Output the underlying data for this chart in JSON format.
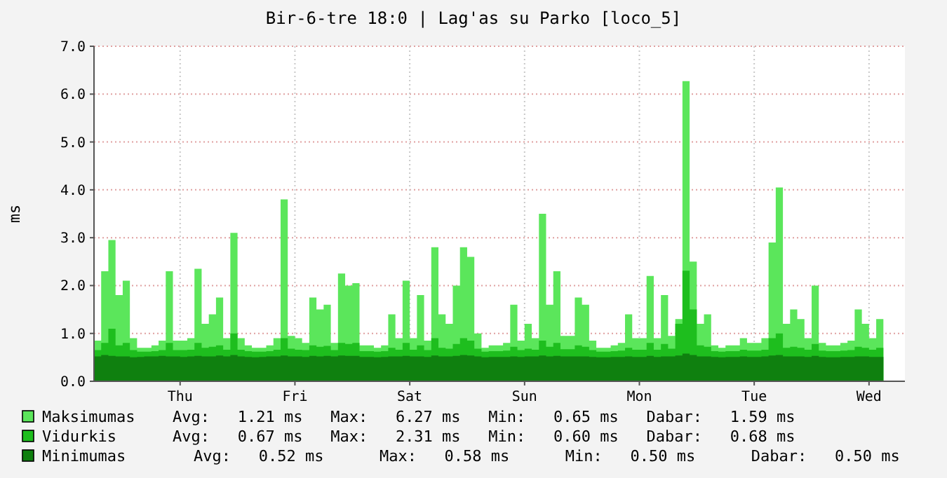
{
  "chart_data": {
    "type": "area",
    "title": "Bir-6-tre 18:0 | Lag'as su Parko [loco_5]",
    "ylabel": "ms",
    "categories": [
      null,
      null,
      null,
      null,
      null,
      null,
      null,
      null,
      null,
      null,
      null,
      null,
      "Thu",
      null,
      null,
      null,
      null,
      null,
      null,
      null,
      null,
      null,
      null,
      null,
      null,
      null,
      null,
      null,
      "Fri",
      null,
      null,
      null,
      null,
      null,
      null,
      null,
      null,
      null,
      null,
      null,
      null,
      null,
      null,
      null,
      "Sat",
      null,
      null,
      null,
      null,
      null,
      null,
      null,
      null,
      null,
      null,
      null,
      null,
      null,
      null,
      null,
      "Sun",
      null,
      null,
      null,
      null,
      null,
      null,
      null,
      null,
      null,
      null,
      null,
      null,
      null,
      null,
      null,
      "Mon",
      null,
      null,
      null,
      null,
      null,
      null,
      null,
      null,
      null,
      null,
      null,
      null,
      null,
      null,
      null,
      "Tue",
      null,
      null,
      null,
      null,
      null,
      null,
      null,
      null,
      null,
      null,
      null,
      null,
      null,
      null,
      null,
      "Wed",
      null,
      null
    ],
    "series": [
      {
        "name": "Maksimumas",
        "color": "#5be65b",
        "values": [
          0.85,
          2.3,
          2.95,
          1.8,
          2.1,
          0.9,
          0.7,
          0.7,
          0.75,
          0.85,
          2.3,
          0.85,
          0.85,
          0.9,
          2.35,
          1.2,
          1.4,
          1.75,
          0.9,
          3.1,
          0.9,
          0.75,
          0.7,
          0.7,
          0.75,
          0.9,
          3.8,
          0.95,
          0.9,
          0.8,
          1.75,
          1.5,
          1.6,
          0.8,
          2.25,
          2.0,
          2.05,
          0.75,
          0.75,
          0.7,
          0.75,
          1.4,
          0.9,
          2.1,
          0.9,
          1.8,
          0.85,
          2.8,
          1.4,
          1.2,
          2.0,
          2.8,
          2.6,
          1.0,
          0.7,
          0.75,
          0.75,
          0.8,
          1.6,
          0.85,
          1.2,
          0.9,
          3.5,
          1.6,
          2.3,
          0.95,
          0.95,
          1.75,
          1.6,
          0.85,
          0.7,
          0.7,
          0.75,
          0.8,
          1.4,
          0.9,
          0.9,
          2.2,
          0.9,
          1.8,
          0.95,
          1.3,
          6.27,
          2.5,
          1.2,
          1.4,
          0.75,
          0.7,
          0.75,
          0.75,
          0.9,
          0.8,
          0.8,
          0.9,
          2.9,
          4.05,
          1.2,
          1.5,
          1.3,
          0.9,
          2.0,
          0.8,
          0.75,
          0.75,
          0.8,
          0.85,
          1.5,
          1.2,
          0.9,
          1.3,
          1.59
        ]
      },
      {
        "name": "Vidurkis",
        "color": "#1ebe1e",
        "values": [
          0.65,
          0.8,
          1.1,
          0.75,
          0.8,
          0.65,
          0.62,
          0.62,
          0.63,
          0.65,
          0.8,
          0.65,
          0.65,
          0.66,
          0.8,
          0.7,
          0.72,
          0.75,
          0.66,
          1.0,
          0.66,
          0.63,
          0.62,
          0.62,
          0.63,
          0.66,
          0.9,
          0.68,
          0.66,
          0.65,
          0.75,
          0.72,
          0.74,
          0.65,
          0.8,
          0.78,
          0.8,
          0.63,
          0.63,
          0.62,
          0.63,
          0.7,
          0.66,
          0.8,
          0.66,
          0.75,
          0.65,
          0.9,
          0.7,
          0.68,
          0.78,
          0.9,
          0.85,
          0.68,
          0.62,
          0.63,
          0.63,
          0.64,
          0.72,
          0.65,
          0.68,
          0.66,
          0.85,
          0.72,
          0.8,
          0.67,
          0.67,
          0.75,
          0.72,
          0.65,
          0.62,
          0.62,
          0.63,
          0.64,
          0.7,
          0.66,
          0.66,
          0.8,
          0.66,
          0.78,
          0.68,
          1.2,
          2.31,
          1.5,
          0.75,
          0.72,
          0.63,
          0.62,
          0.63,
          0.63,
          0.66,
          0.64,
          0.64,
          0.66,
          0.9,
          1.0,
          0.7,
          0.72,
          0.7,
          0.66,
          0.78,
          0.64,
          0.63,
          0.63,
          0.64,
          0.65,
          0.72,
          0.7,
          0.66,
          0.7,
          0.68
        ]
      },
      {
        "name": "Minimumas",
        "color": "#0f800f",
        "values": [
          0.52,
          0.55,
          0.53,
          0.52,
          0.52,
          0.5,
          0.51,
          0.52,
          0.52,
          0.53,
          0.52,
          0.52,
          0.51,
          0.52,
          0.53,
          0.52,
          0.52,
          0.54,
          0.52,
          0.55,
          0.52,
          0.51,
          0.5,
          0.51,
          0.52,
          0.52,
          0.54,
          0.52,
          0.52,
          0.51,
          0.53,
          0.52,
          0.53,
          0.52,
          0.54,
          0.53,
          0.53,
          0.51,
          0.51,
          0.5,
          0.51,
          0.52,
          0.52,
          0.53,
          0.52,
          0.52,
          0.51,
          0.54,
          0.52,
          0.52,
          0.53,
          0.55,
          0.54,
          0.52,
          0.5,
          0.51,
          0.51,
          0.51,
          0.52,
          0.51,
          0.52,
          0.52,
          0.54,
          0.52,
          0.53,
          0.52,
          0.52,
          0.52,
          0.52,
          0.51,
          0.5,
          0.5,
          0.51,
          0.51,
          0.52,
          0.51,
          0.51,
          0.53,
          0.51,
          0.52,
          0.52,
          0.54,
          0.58,
          0.55,
          0.52,
          0.52,
          0.51,
          0.5,
          0.51,
          0.51,
          0.52,
          0.51,
          0.51,
          0.52,
          0.54,
          0.55,
          0.52,
          0.52,
          0.52,
          0.51,
          0.53,
          0.51,
          0.5,
          0.5,
          0.51,
          0.51,
          0.52,
          0.52,
          0.51,
          0.51,
          0.5
        ]
      }
    ],
    "ylim": [
      0,
      7
    ],
    "yticks": [
      {
        "value": 0,
        "label": "0.0"
      },
      {
        "value": 1,
        "label": "1.0"
      },
      {
        "value": 2,
        "label": "2.0"
      },
      {
        "value": 3,
        "label": "3.0"
      },
      {
        "value": 4,
        "label": "4.0"
      },
      {
        "value": 5,
        "label": "5.0"
      },
      {
        "value": 6,
        "label": "6.0"
      },
      {
        "value": 7,
        "label": "7.0"
      }
    ],
    "grid": true,
    "legend": "bottom",
    "annotations": [
      "Avg:   1.21 ms   Max:   6.27 ms   Min:   0.65 ms   Dabar:   1.59 ms",
      "Avg:   0.67 ms   Max:   2.31 ms   Min:   0.60 ms   Dabar:   0.68 ms",
      "Avg:   0.52 ms      Max:   0.58 ms      Min:   0.50 ms      Dabar:   0.50 ms"
    ]
  }
}
